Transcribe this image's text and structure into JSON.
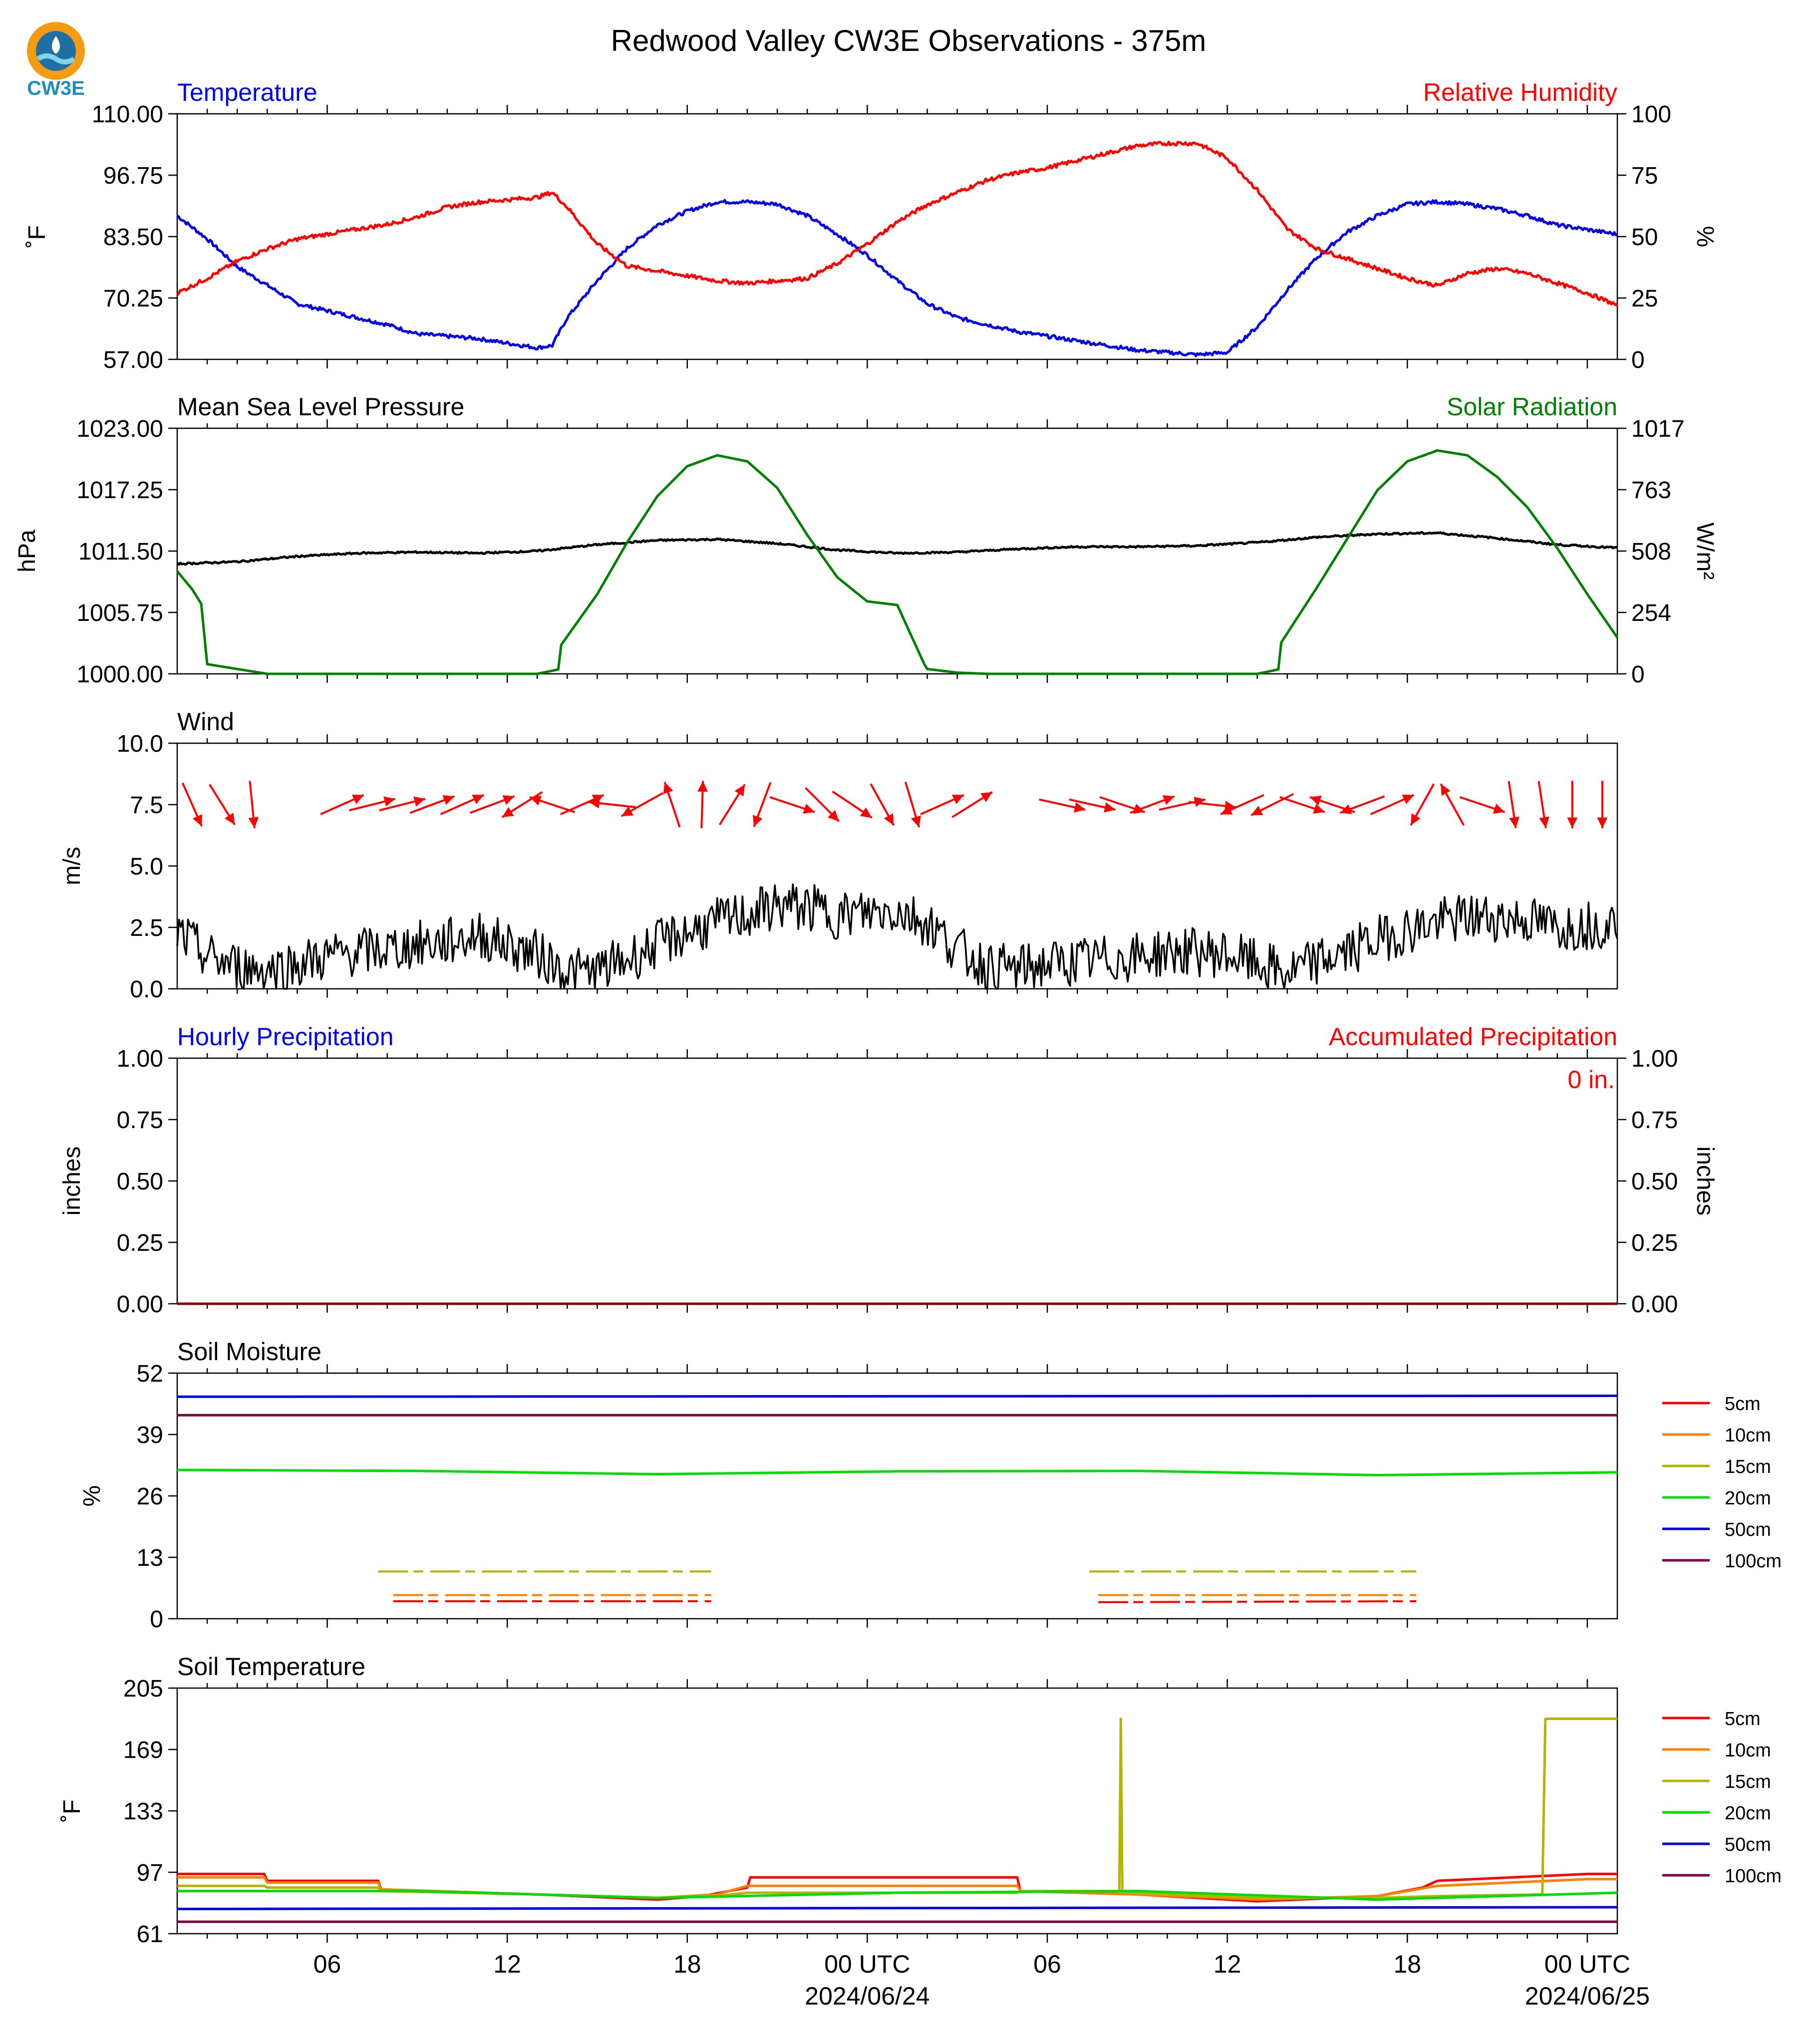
{
  "header": {
    "title": "Redwood Valley CW3E Observations - 375m",
    "logo_text": "CW3E"
  },
  "colors": {
    "blue": "#0000e6",
    "red": "#ff0000",
    "green": "#008000",
    "black": "#000000"
  },
  "x_axis": {
    "range_hours": [
      0,
      48
    ],
    "ticks": [
      "06",
      "12",
      "18",
      "00 UTC",
      "06",
      "12",
      "18",
      "00 UTC"
    ],
    "tick_hours": [
      5,
      11,
      17,
      23,
      29,
      35,
      41,
      47
    ],
    "dates": [
      "2024/06/24",
      "2024/06/25"
    ]
  },
  "chart_data": [
    {
      "type": "line",
      "title_left": "Temperature",
      "title_right": "Relative Humidity",
      "ylabel_left": "˚F",
      "ylabel_right": "%",
      "ylim_left": [
        57,
        110
      ],
      "ylim_right": [
        0,
        100
      ],
      "yticks_left": [
        "57.00",
        "70.25",
        "83.50",
        "96.75",
        "110.00"
      ],
      "yticks_right": [
        "0",
        "25",
        "50",
        "75",
        "100"
      ],
      "x_hours": [
        0,
        1,
        2,
        3,
        4,
        5,
        6,
        7,
        8,
        9,
        10,
        11,
        12,
        12.5,
        13,
        14,
        15,
        16,
        17,
        18,
        19,
        20,
        21,
        22,
        23,
        24,
        25,
        26,
        27,
        28,
        29,
        30,
        31,
        32,
        33,
        34,
        35,
        36,
        37,
        38,
        39,
        40,
        41,
        42,
        43,
        44,
        45,
        46,
        47,
        48
      ],
      "series": [
        {
          "name": "Temperature",
          "color": "#0000e6",
          "axis": "left",
          "values": [
            88,
            83,
            77,
            73,
            69,
            67.5,
            66,
            64.5,
            62.5,
            62,
            61.5,
            60.5,
            59.5,
            60,
            66,
            74,
            81,
            86,
            89,
            91,
            91,
            90.5,
            88,
            84,
            79.5,
            74,
            69,
            66,
            64.5,
            63,
            62,
            61,
            60,
            59,
            58.5,
            58,
            58.5,
            64,
            72,
            79,
            84.5,
            88,
            90.5,
            91,
            90.5,
            89.5,
            88,
            86,
            85,
            84
          ]
        },
        {
          "name": "Relative Humidity",
          "color": "#ff0000",
          "axis": "right",
          "values": [
            27,
            33,
            40,
            45,
            49,
            51,
            53,
            55,
            58,
            62,
            64,
            65,
            66,
            68,
            62,
            47,
            38,
            36,
            34,
            32,
            31,
            32,
            33,
            39,
            47,
            56,
            63,
            68,
            73,
            76,
            78,
            81,
            84,
            87,
            88,
            88,
            82,
            69,
            53,
            45,
            41,
            37,
            33,
            30,
            35,
            37,
            35,
            31,
            27,
            22
          ]
        }
      ]
    },
    {
      "type": "line",
      "title_left": "Mean Sea Level Pressure",
      "title_right": "Solar Radiation",
      "ylabel_left": "hPa",
      "ylabel_right": "W/m²",
      "ylim_left": [
        1000,
        1023
      ],
      "ylim_right": [
        0,
        1017
      ],
      "yticks_left": [
        "1000.00",
        "1005.75",
        "1011.50",
        "1017.25",
        "1023.00"
      ],
      "yticks_right": [
        "0",
        "254",
        "508",
        "763",
        "1017"
      ],
      "series": [
        {
          "name": "Mean Sea Level Pressure",
          "color": "#000000",
          "axis": "left",
          "x_hours": [
            0,
            2,
            4,
            6,
            8,
            10,
            12,
            14,
            16,
            18,
            20,
            22,
            24,
            26,
            28,
            30,
            32,
            34,
            36,
            38,
            40,
            42,
            44,
            46,
            48
          ],
          "values": [
            1010.3,
            1010.5,
            1011,
            1011.3,
            1011.4,
            1011.3,
            1011.5,
            1012.1,
            1012.5,
            1012.6,
            1012.2,
            1011.6,
            1011.3,
            1011.4,
            1011.7,
            1011.9,
            1011.9,
            1012,
            1012.3,
            1012.8,
            1013.1,
            1013.2,
            1012.7,
            1012.1,
            1011.8
          ]
        },
        {
          "name": "Solar Radiation",
          "color": "#008000",
          "axis": "right",
          "x_hours": [
            0,
            0.5,
            0.8,
            1,
            2,
            3,
            12,
            12.7,
            12.8,
            14,
            15,
            16,
            17,
            18,
            19,
            20,
            21,
            22,
            23,
            24,
            24.9,
            25,
            26,
            27,
            36,
            36.7,
            36.8,
            38,
            39,
            40,
            41,
            42,
            43,
            44,
            45,
            46,
            47,
            48
          ],
          "values": [
            425,
            350,
            290,
            40,
            20,
            0,
            0,
            18,
            120,
            330,
            545,
            735,
            860,
            905,
            880,
            770,
            575,
            400,
            300,
            285,
            40,
            20,
            5,
            0,
            0,
            18,
            130,
            360,
            560,
            760,
            880,
            925,
            905,
            815,
            690,
            520,
            330,
            150
          ]
        }
      ]
    },
    {
      "type": "line",
      "title_left": "Wind",
      "ylabel_left": "m/s",
      "ylim_left": [
        0,
        10
      ],
      "yticks_left": [
        "0.0",
        "2.5",
        "5.0",
        "7.5",
        "10.0"
      ],
      "series": [
        {
          "name": "Wind",
          "color": "#000000",
          "axis": "left",
          "x_hours": [
            0,
            1,
            2,
            3,
            4,
            5,
            6,
            7,
            8,
            9,
            10,
            11,
            12,
            13,
            14,
            15,
            16,
            17,
            18,
            19,
            20,
            21,
            22,
            23,
            24,
            25,
            26,
            27,
            28,
            29,
            30,
            31,
            32,
            33,
            34,
            35,
            36,
            37,
            38,
            39,
            40,
            41,
            42,
            43,
            44,
            45,
            46,
            47,
            48
          ],
          "values": [
            2.3,
            1.3,
            0.9,
            0.8,
            1.0,
            1.3,
            1.5,
            1.6,
            1.8,
            1.9,
            2.2,
            1.8,
            1.4,
            0.7,
            0.7,
            1.2,
            1.8,
            2.3,
            2.7,
            3.0,
            3.4,
            3.3,
            3.0,
            3.1,
            3.2,
            2.7,
            1.6,
            0.9,
            0.8,
            1.0,
            1.1,
            1.2,
            1.3,
            1.5,
            1.5,
            1.4,
            1.0,
            0.6,
            1.1,
            1.5,
            2.0,
            2.4,
            2.7,
            2.9,
            2.9,
            2.8,
            2.5,
            2.6,
            2.7
          ]
        }
      ],
      "wind_arrows": {
        "color": "#ff0000",
        "x_hours": [
          0,
          1,
          2,
          5,
          6,
          7,
          8,
          9,
          10,
          11,
          12,
          13,
          14,
          15,
          16,
          17,
          18,
          19,
          20,
          21,
          22,
          23,
          24,
          25,
          26,
          29,
          30,
          31,
          32,
          33,
          34,
          35,
          36,
          37,
          38,
          39,
          40,
          41,
          42,
          43,
          44,
          45,
          46,
          47
        ],
        "u": [
          0.4,
          0.5,
          0.1,
          0.9,
          0.8,
          0.8,
          0.8,
          0.9,
          0.8,
          -0.8,
          -0.9,
          0.9,
          -0.9,
          -0.9,
          -0.3,
          0.03,
          0.5,
          -0.3,
          0.3,
          0.8,
          0.3,
          0.5,
          0.3,
          0.9,
          0.8,
          0.9,
          0.9,
          0.9,
          0.8,
          0.9,
          0.9,
          -0.9,
          -0.6,
          0.9,
          -0.9,
          -0.8,
          0.9,
          -0.5,
          -0.5,
          0.9,
          0.15,
          0.15,
          0,
          0
        ],
        "v": [
          -0.9,
          -0.8,
          -1,
          0.4,
          0.2,
          0.2,
          0.3,
          0.4,
          0.3,
          -0.5,
          0.3,
          0.4,
          0.1,
          -0.5,
          0.9,
          1,
          0.8,
          -0.8,
          -0.1,
          -0.8,
          -0.2,
          -0.9,
          -1,
          0.4,
          0.5,
          -0.2,
          -0.2,
          -0.3,
          0.3,
          0.2,
          -0.1,
          -0.4,
          -0.3,
          -0.3,
          0.3,
          -0.3,
          0.4,
          -0.9,
          0.9,
          -0.3,
          -1,
          -1,
          -1,
          -1
        ]
      }
    },
    {
      "type": "line",
      "title_left": "Hourly Precipitation",
      "title_right": "Accumulated Precipitation",
      "ylabel_left": "inches",
      "ylabel_right": "inches",
      "ylim_left": [
        0,
        1
      ],
      "ylim_right": [
        0,
        1
      ],
      "yticks_left": [
        "0.00",
        "0.25",
        "0.50",
        "0.75",
        "1.00"
      ],
      "yticks_right": [
        "0.00",
        "0.25",
        "0.50",
        "0.75",
        "1.00"
      ],
      "annotation": "0 in.",
      "series": [
        {
          "name": "Accumulated Precipitation",
          "color": "#8b0000",
          "axis": "left",
          "x_hours": [
            0,
            48
          ],
          "values": [
            0,
            0
          ]
        }
      ]
    },
    {
      "type": "line",
      "title_left": "Soil Moisture",
      "ylabel_left": "%",
      "ylim_left": [
        0,
        52
      ],
      "yticks_left": [
        "0",
        "13",
        "26",
        "39",
        "52"
      ],
      "legend": [
        "5cm",
        "10cm",
        "15cm",
        "20cm",
        "50cm",
        "100cm"
      ],
      "legend_colors": [
        "#ff0000",
        "#ff8000",
        "#b4b400",
        "#00dd00",
        "#0000e6",
        "#800040"
      ],
      "series": [
        {
          "name": "5cm",
          "color": "#ff0000",
          "segments": [
            [
              [
                7.2,
                3.7
              ],
              [
                17.8,
                3.7
              ]
            ],
            [
              [
                30.7,
                3.5
              ],
              [
                41.3,
                3.7
              ]
            ]
          ]
        },
        {
          "name": "10cm",
          "color": "#ff8000",
          "segments": [
            [
              [
                7.2,
                5
              ],
              [
                17.8,
                5
              ]
            ],
            [
              [
                30.7,
                5
              ],
              [
                41.3,
                5
              ]
            ]
          ]
        },
        {
          "name": "15cm",
          "color": "#b4b400",
          "segments": [
            [
              [
                6.7,
                10
              ],
              [
                17.8,
                10
              ]
            ],
            [
              [
                30.4,
                10
              ],
              [
                41.3,
                10
              ]
            ]
          ]
        },
        {
          "name": "20cm",
          "color": "#00dd00",
          "x_hours": [
            0,
            8,
            16,
            24,
            32,
            40,
            48
          ],
          "values": [
            31.5,
            31.3,
            30.6,
            31.2,
            31.3,
            30.4,
            31
          ]
        },
        {
          "name": "50cm",
          "color": "#0000e6",
          "x_hours": [
            0,
            48
          ],
          "values": [
            47,
            47.2
          ]
        },
        {
          "name": "100cm",
          "color": "#800040",
          "x_hours": [
            0,
            48
          ],
          "values": [
            43.1,
            43.1
          ]
        }
      ]
    },
    {
      "type": "line",
      "title_left": "Soil Temperature",
      "ylabel_left": "˚F",
      "ylim_left": [
        61,
        205
      ],
      "yticks_left": [
        "61",
        "97",
        "133",
        "169",
        "205"
      ],
      "legend": [
        "5cm",
        "10cm",
        "15cm",
        "20cm",
        "50cm",
        "100cm"
      ],
      "legend_colors": [
        "#ff0000",
        "#ff8000",
        "#b4b400",
        "#00dd00",
        "#0000e6",
        "#800040"
      ],
      "series": [
        {
          "name": "5cm",
          "color": "#ff0000",
          "x_hours": [
            0,
            2.9,
            3,
            6.7,
            6.8,
            12,
            16,
            17.5,
            19,
            19.1,
            28,
            28.1,
            32,
            36,
            40,
            41.5,
            42,
            47,
            48
          ],
          "values": [
            96,
            96,
            92,
            92,
            87,
            84,
            81,
            83,
            88,
            94,
            94,
            86,
            84,
            80,
            83,
            88,
            92,
            96,
            96
          ]
        },
        {
          "name": "10cm",
          "color": "#ff8000",
          "x_hours": [
            0,
            2.9,
            3,
            6.7,
            6.8,
            12,
            16,
            18,
            19,
            28,
            28.1,
            32,
            36,
            40,
            42,
            47,
            48
          ],
          "values": [
            94,
            94,
            91,
            91,
            87,
            84,
            82,
            84,
            89,
            89,
            86,
            84,
            81,
            83,
            89,
            93,
            93
          ]
        },
        {
          "name": "15cm",
          "color": "#b4b400",
          "x_hours": [
            0,
            2.9,
            3,
            6.7,
            6.8,
            12,
            16,
            18,
            19,
            28,
            28.1,
            31.4,
            31.45,
            31.5,
            31.55,
            36,
            40,
            42,
            45.5,
            45.6,
            48
          ],
          "values": [
            89,
            89,
            88,
            88,
            86,
            84,
            82,
            83,
            85,
            85,
            86,
            86,
            187,
            86,
            85,
            82,
            82,
            83,
            84,
            187,
            187
          ]
        },
        {
          "name": "20cm",
          "color": "#00dd00",
          "x_hours": [
            0,
            8,
            16,
            24,
            32,
            40,
            48
          ],
          "values": [
            86,
            86,
            82,
            85,
            86,
            81,
            85
          ]
        },
        {
          "name": "50cm",
          "color": "#0000e6",
          "x_hours": [
            0,
            48
          ],
          "values": [
            75.5,
            76.5
          ]
        },
        {
          "name": "100cm",
          "color": "#800040",
          "x_hours": [
            0,
            48
          ],
          "values": [
            68,
            68
          ]
        }
      ]
    }
  ]
}
